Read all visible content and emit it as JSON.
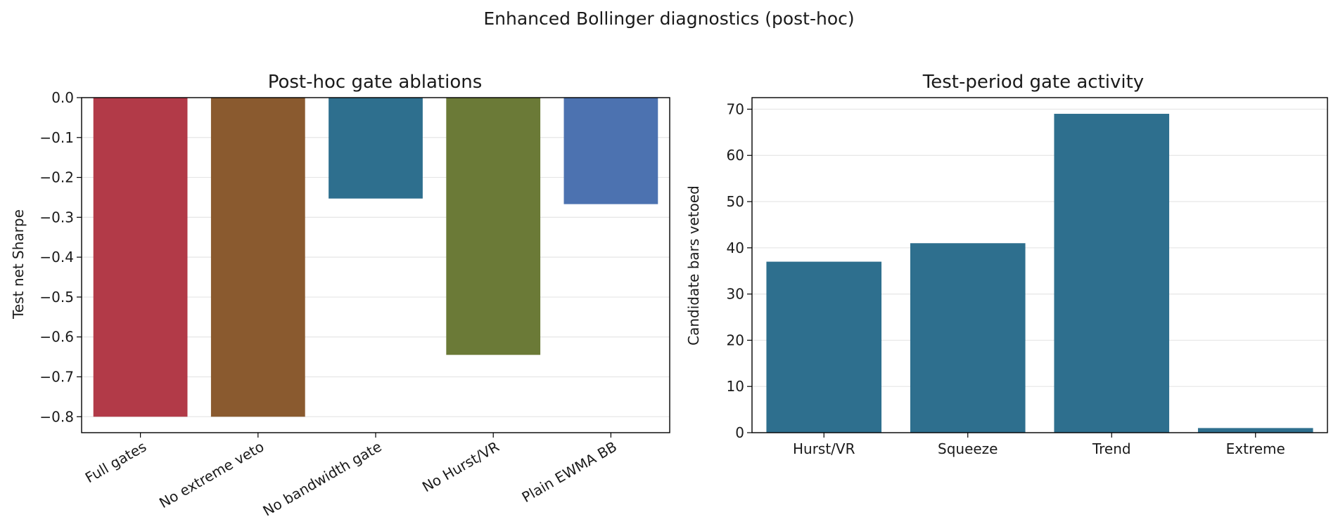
{
  "figure": {
    "suptitle": "Enhanced Bollinger diagnostics (post-hoc)"
  },
  "chart_data": [
    {
      "type": "bar",
      "title": "Post-hoc gate ablations",
      "xlabel": "",
      "ylabel": "Test net Sharpe",
      "categories": [
        "Full gates",
        "No extreme veto",
        "No bandwidth gate",
        "No Hurst/VR",
        "Plain EWMA BB"
      ],
      "values": [
        -0.8,
        -0.8,
        -0.253,
        -0.645,
        -0.267
      ],
      "colors": [
        "#b23a48",
        "#8a5a2f",
        "#2e6f8e",
        "#6b7a37",
        "#4c72b0"
      ],
      "ylim": [
        -0.84,
        0.0
      ],
      "yticks": [
        0.0,
        -0.1,
        -0.2,
        -0.3,
        -0.4,
        -0.5,
        -0.6,
        -0.7,
        -0.8
      ],
      "ytick_labels": [
        "0.0",
        "−0.1",
        "−0.2",
        "−0.3",
        "−0.4",
        "−0.5",
        "−0.6",
        "−0.7",
        "−0.8"
      ],
      "grid": "y",
      "xtick_rotation": "30deg"
    },
    {
      "type": "bar",
      "title": "Test-period gate activity",
      "xlabel": "",
      "ylabel": "Candidate bars vetoed",
      "categories": [
        "Hurst/VR",
        "Squeeze",
        "Trend",
        "Extreme"
      ],
      "values": [
        37,
        41,
        69,
        1
      ],
      "colors": [
        "#2e6f8e",
        "#2e6f8e",
        "#2e6f8e",
        "#2e6f8e"
      ],
      "ylim": [
        0,
        72.5
      ],
      "yticks": [
        0,
        10,
        20,
        30,
        40,
        50,
        60,
        70
      ],
      "ytick_labels": [
        "0",
        "10",
        "20",
        "30",
        "40",
        "50",
        "60",
        "70"
      ],
      "grid": "y",
      "xtick_rotation": "0deg"
    }
  ]
}
